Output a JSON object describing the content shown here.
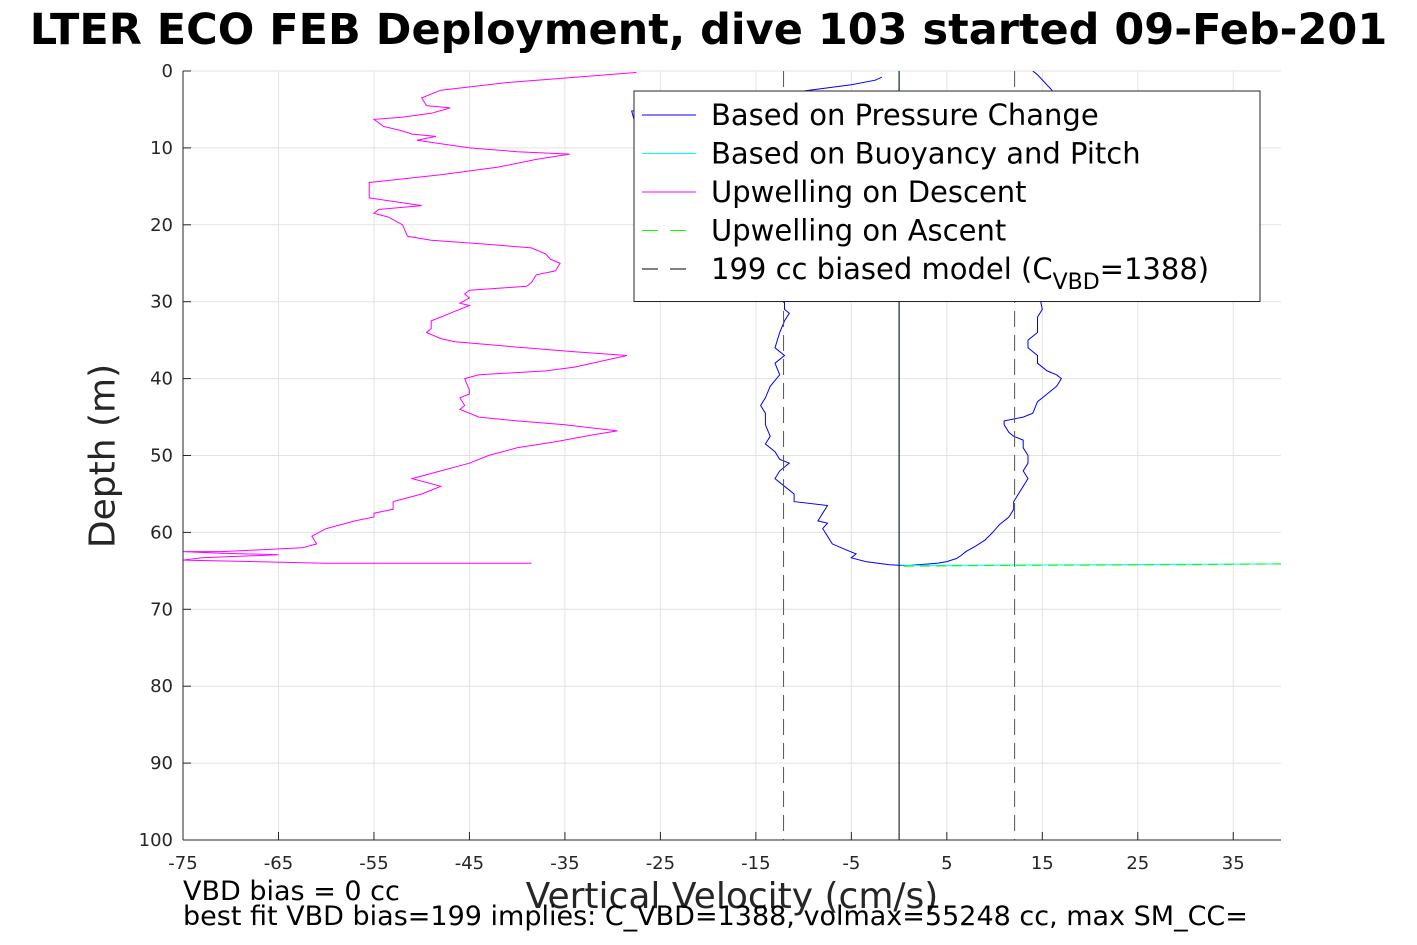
{
  "chart_data": {
    "type": "line",
    "title": "LTER ECO FEB Deployment, dive 103 started 09-Feb-201",
    "xlabel": "Vertical Velocity (cm/s)",
    "ylabel": "Depth (m)",
    "xlim": [
      -75,
      40
    ],
    "ylim": [
      0,
      100
    ],
    "y_reversed": true,
    "grid": true,
    "x_ticks": [
      -75,
      -65,
      -55,
      -45,
      -35,
      -25,
      -15,
      -5,
      5,
      15,
      25,
      35
    ],
    "y_ticks": [
      0,
      10,
      20,
      30,
      40,
      50,
      60,
      70,
      80,
      90,
      100
    ],
    "legend_position": "top-right",
    "legend": [
      {
        "label": "Based on Pressure Change",
        "color": "#0000ff",
        "style": "solid"
      },
      {
        "label": "Based on Buoyancy and Pitch",
        "color": "#00ffff",
        "style": "solid"
      },
      {
        "label": "Upwelling on Descent",
        "color": "#ff00ff",
        "style": "solid"
      },
      {
        "label": "Upwelling on Ascent",
        "color": "#00ff00",
        "style": "dashed"
      },
      {
        "label": "199 cc biased model (C",
        "sub": "VBD",
        "label_end": "=1388)",
        "color": "#000000",
        "style": "dashed"
      }
    ],
    "series": [
      {
        "name": "Based on Pressure Change",
        "color": "#0000ff",
        "points": [
          [
            -1.8,
            0.8
          ],
          [
            -2.5,
            1.2
          ],
          [
            -5,
            1.8
          ],
          [
            -10,
            2.6
          ],
          [
            -18,
            3.8
          ],
          [
            -25,
            4.8
          ],
          [
            -28,
            5.2
          ],
          [
            -27.5,
            7.5
          ],
          [
            -24,
            8.5
          ],
          [
            -18,
            10
          ],
          [
            -14,
            13
          ],
          [
            -12,
            16
          ],
          [
            -11,
            20
          ],
          [
            -11.5,
            24
          ],
          [
            -12,
            28
          ],
          [
            -12,
            31
          ],
          [
            -11.5,
            31.5
          ],
          [
            -12,
            32.5
          ],
          [
            -12.5,
            34
          ],
          [
            -13,
            36
          ],
          [
            -12,
            37
          ],
          [
            -13,
            38
          ],
          [
            -12.5,
            39.5
          ],
          [
            -13.5,
            41
          ],
          [
            -14,
            42.5
          ],
          [
            -14.5,
            43.5
          ],
          [
            -14,
            44.5
          ],
          [
            -14,
            46
          ],
          [
            -13.5,
            47.5
          ],
          [
            -14,
            48.5
          ],
          [
            -13,
            49.5
          ],
          [
            -12.5,
            50.5
          ],
          [
            -11.5,
            51
          ],
          [
            -12.5,
            52
          ],
          [
            -13,
            53
          ],
          [
            -12,
            54
          ],
          [
            -11,
            55
          ],
          [
            -11,
            56
          ],
          [
            -7.5,
            56.5
          ],
          [
            -8,
            57.5
          ],
          [
            -8.5,
            58.5
          ],
          [
            -7.5,
            58.8
          ],
          [
            -8,
            59.5
          ],
          [
            -7.5,
            60.5
          ],
          [
            -7,
            61.5
          ],
          [
            -5.5,
            62.3
          ],
          [
            -4.5,
            62.8
          ],
          [
            -5,
            63.3
          ],
          [
            -3.5,
            63.8
          ],
          [
            -1,
            64.2
          ],
          [
            0.5,
            64.3
          ],
          [
            1,
            64.3
          ],
          [
            2,
            64.2
          ],
          [
            4,
            64.0
          ],
          [
            5,
            63.8
          ],
          [
            6,
            63.4
          ],
          [
            6.5,
            63.0
          ],
          [
            7,
            62.5
          ],
          [
            8,
            61.8
          ],
          [
            9,
            61
          ],
          [
            9.8,
            60
          ],
          [
            10.5,
            59
          ],
          [
            11.5,
            58
          ],
          [
            12,
            57
          ],
          [
            12,
            56
          ],
          [
            12.5,
            55
          ],
          [
            13,
            54
          ],
          [
            13.5,
            53
          ],
          [
            13,
            52
          ],
          [
            13.5,
            51
          ],
          [
            13.5,
            50
          ],
          [
            13,
            49
          ],
          [
            13,
            48
          ],
          [
            12,
            47.5
          ],
          [
            11.5,
            47
          ],
          [
            11,
            46
          ],
          [
            11,
            45.5
          ],
          [
            13,
            45
          ],
          [
            14,
            44.5
          ],
          [
            14.5,
            43
          ],
          [
            15.5,
            42
          ],
          [
            16.5,
            41
          ],
          [
            17,
            40
          ],
          [
            16.5,
            39.5
          ],
          [
            15.5,
            39
          ],
          [
            14.5,
            38
          ],
          [
            14.5,
            37
          ],
          [
            13.5,
            36
          ],
          [
            13.5,
            35
          ],
          [
            14.5,
            34
          ],
          [
            14.5,
            33
          ],
          [
            14.5,
            32
          ],
          [
            15,
            31
          ],
          [
            14.5,
            28
          ],
          [
            15,
            25
          ],
          [
            16,
            22
          ],
          [
            17,
            18
          ],
          [
            18,
            14
          ],
          [
            18.5,
            10
          ],
          [
            17.5,
            6
          ],
          [
            16,
            2.5
          ],
          [
            14.5,
            0.5
          ],
          [
            14,
            0
          ]
        ]
      },
      {
        "name": "Based on Buoyancy and Pitch",
        "color": "#00ffff",
        "points": [
          [
            0,
            0
          ],
          [
            0,
            64.2
          ],
          [
            1,
            64.3
          ],
          [
            10,
            64.25
          ],
          [
            20,
            64.2
          ],
          [
            30,
            64.15
          ],
          [
            40,
            64.1
          ]
        ]
      },
      {
        "name": "Upwelling on Descent",
        "color": "#ff00ff",
        "points": [
          [
            -27.5,
            0.2
          ],
          [
            -41,
            1.5
          ],
          [
            -48,
            2.5
          ],
          [
            -50,
            3.5
          ],
          [
            -49.5,
            4.5
          ],
          [
            -47,
            4.8
          ],
          [
            -49,
            5.5
          ],
          [
            -52,
            6
          ],
          [
            -55,
            6.3
          ],
          [
            -54,
            7.2
          ],
          [
            -52,
            7.8
          ],
          [
            -51,
            8.2
          ],
          [
            -48.5,
            8.5
          ],
          [
            -50.5,
            9
          ],
          [
            -45,
            10
          ],
          [
            -40,
            10.5
          ],
          [
            -34.5,
            10.8
          ],
          [
            -38,
            11.5
          ],
          [
            -42,
            12.5
          ],
          [
            -48,
            13.5
          ],
          [
            -55.5,
            14.5
          ],
          [
            -55.5,
            15.5
          ],
          [
            -55.5,
            16.5
          ],
          [
            -50,
            17.5
          ],
          [
            -54.5,
            18
          ],
          [
            -55,
            18.5
          ],
          [
            -53.5,
            19
          ],
          [
            -52,
            20
          ],
          [
            -51.5,
            21.5
          ],
          [
            -49,
            22
          ],
          [
            -43.5,
            22.5
          ],
          [
            -38.5,
            23
          ],
          [
            -37,
            23.8
          ],
          [
            -36.5,
            24.5
          ],
          [
            -35.5,
            25
          ],
          [
            -36,
            26
          ],
          [
            -38,
            26.5
          ],
          [
            -38.5,
            27.5
          ],
          [
            -39,
            28
          ],
          [
            -45,
            28.5
          ],
          [
            -45.5,
            29
          ],
          [
            -45,
            29.5
          ],
          [
            -46,
            30.2
          ],
          [
            -45,
            30.5
          ],
          [
            -47,
            31.5
          ],
          [
            -49,
            32.5
          ],
          [
            -49,
            33.5
          ],
          [
            -49.5,
            34
          ],
          [
            -48,
            34.8
          ],
          [
            -46.5,
            35.2
          ],
          [
            -41,
            35.8
          ],
          [
            -34,
            36.5
          ],
          [
            -28.5,
            37
          ],
          [
            -34,
            38.5
          ],
          [
            -37,
            39
          ],
          [
            -44,
            39.5
          ],
          [
            -45.5,
            40
          ],
          [
            -45,
            41.5
          ],
          [
            -45,
            42
          ],
          [
            -46,
            42.5
          ],
          [
            -45.5,
            43.5
          ],
          [
            -46,
            44
          ],
          [
            -44,
            45
          ],
          [
            -40,
            45.5
          ],
          [
            -35,
            46
          ],
          [
            -33,
            46.3
          ],
          [
            -29.5,
            46.8
          ],
          [
            -32,
            47.3
          ],
          [
            -36,
            48.2
          ],
          [
            -40,
            49
          ],
          [
            -43,
            50
          ],
          [
            -45,
            51
          ],
          [
            -48,
            52
          ],
          [
            -51,
            53
          ],
          [
            -48,
            54
          ],
          [
            -50,
            55
          ],
          [
            -53,
            56
          ],
          [
            -53,
            57
          ],
          [
            -55,
            57.5
          ],
          [
            -55,
            58
          ],
          [
            -57,
            58.5
          ],
          [
            -60,
            59.5
          ],
          [
            -61.5,
            60.5
          ],
          [
            -61,
            61.5
          ],
          [
            -62.5,
            62
          ],
          [
            -71,
            62.5
          ],
          [
            -75,
            62.5
          ],
          [
            -71,
            62.7
          ],
          [
            -65,
            62.9
          ],
          [
            -73,
            63.3
          ],
          [
            -75,
            63.6
          ],
          [
            -60,
            64
          ],
          [
            -38.5,
            64
          ]
        ]
      },
      {
        "name": "Upwelling on Ascent",
        "color": "#00ff00",
        "dashed": true,
        "points": [
          [
            0.5,
            64.4
          ],
          [
            10,
            64.3
          ],
          [
            20,
            64.25
          ],
          [
            30,
            64.2
          ],
          [
            40,
            64.1
          ]
        ]
      },
      {
        "name": "199 cc biased model (CVBD=1388)",
        "color": "#000000",
        "dashed": true,
        "vertical_lines_x": [
          -12.1,
          12.1
        ]
      },
      {
        "name": "zero reference",
        "color": "#000000",
        "vertical_lines_x": [
          0
        ]
      }
    ]
  },
  "footnotes": {
    "line1": "VBD bias = 0 cc",
    "line2": "best fit VBD bias=199 implies: C_VBD=1388, volmax=55248 cc, max SM_CC="
  }
}
